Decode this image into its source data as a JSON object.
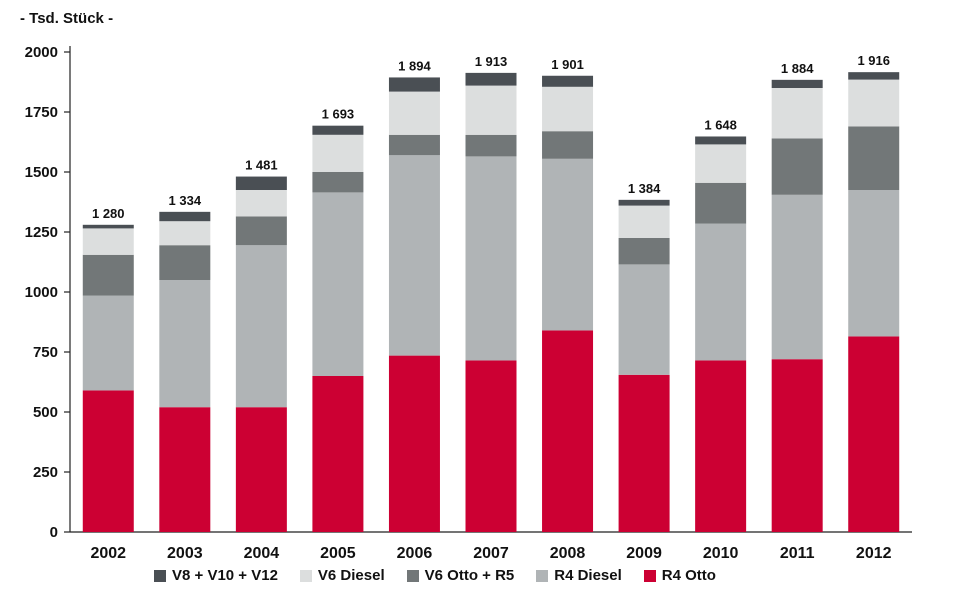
{
  "unit_label": "- Tsd. Stück -",
  "colors": {
    "V8 + V10 + V12": "#4a4f54",
    "V6 Diesel": "#dcdede",
    "V6 Otto + R5": "#727778",
    "R4 Diesel": "#b0b4b6",
    "R4 Otto": "#cc0033"
  },
  "chart_data": {
    "type": "bar",
    "stacked": true,
    "categories": [
      "2002",
      "2003",
      "2004",
      "2005",
      "2006",
      "2007",
      "2008",
      "2009",
      "2010",
      "2011",
      "2012"
    ],
    "series": [
      {
        "name": "R4 Otto",
        "values": [
          590,
          520,
          520,
          650,
          735,
          715,
          840,
          655,
          715,
          720,
          815
        ]
      },
      {
        "name": "R4 Diesel",
        "values": [
          395,
          530,
          675,
          765,
          835,
          850,
          715,
          460,
          570,
          685,
          610
        ]
      },
      {
        "name": "V6 Otto + R5",
        "values": [
          170,
          145,
          120,
          85,
          85,
          90,
          115,
          110,
          170,
          235,
          265
        ]
      },
      {
        "name": "V6 Diesel",
        "values": [
          110,
          100,
          110,
          155,
          180,
          205,
          185,
          135,
          160,
          210,
          195
        ]
      },
      {
        "name": "V8 + V10 + V12",
        "values": [
          15,
          39,
          56,
          38,
          59,
          53,
          46,
          24,
          33,
          34,
          31
        ]
      }
    ],
    "totals": [
      "1 280",
      "1 334",
      "1 481",
      "1 693",
      "1 894",
      "1 913",
      "1 901",
      "1 384",
      "1 648",
      "1 884",
      "1 916"
    ],
    "yticks": [
      0,
      250,
      500,
      750,
      1000,
      1250,
      1500,
      1750,
      2000
    ],
    "ylim": [
      0,
      2000
    ],
    "grid": false,
    "legend_position": "bottom",
    "legend_order": [
      "V8 + V10 + V12",
      "V6 Diesel",
      "V6 Otto + R5",
      "R4 Diesel",
      "R4 Otto"
    ]
  }
}
